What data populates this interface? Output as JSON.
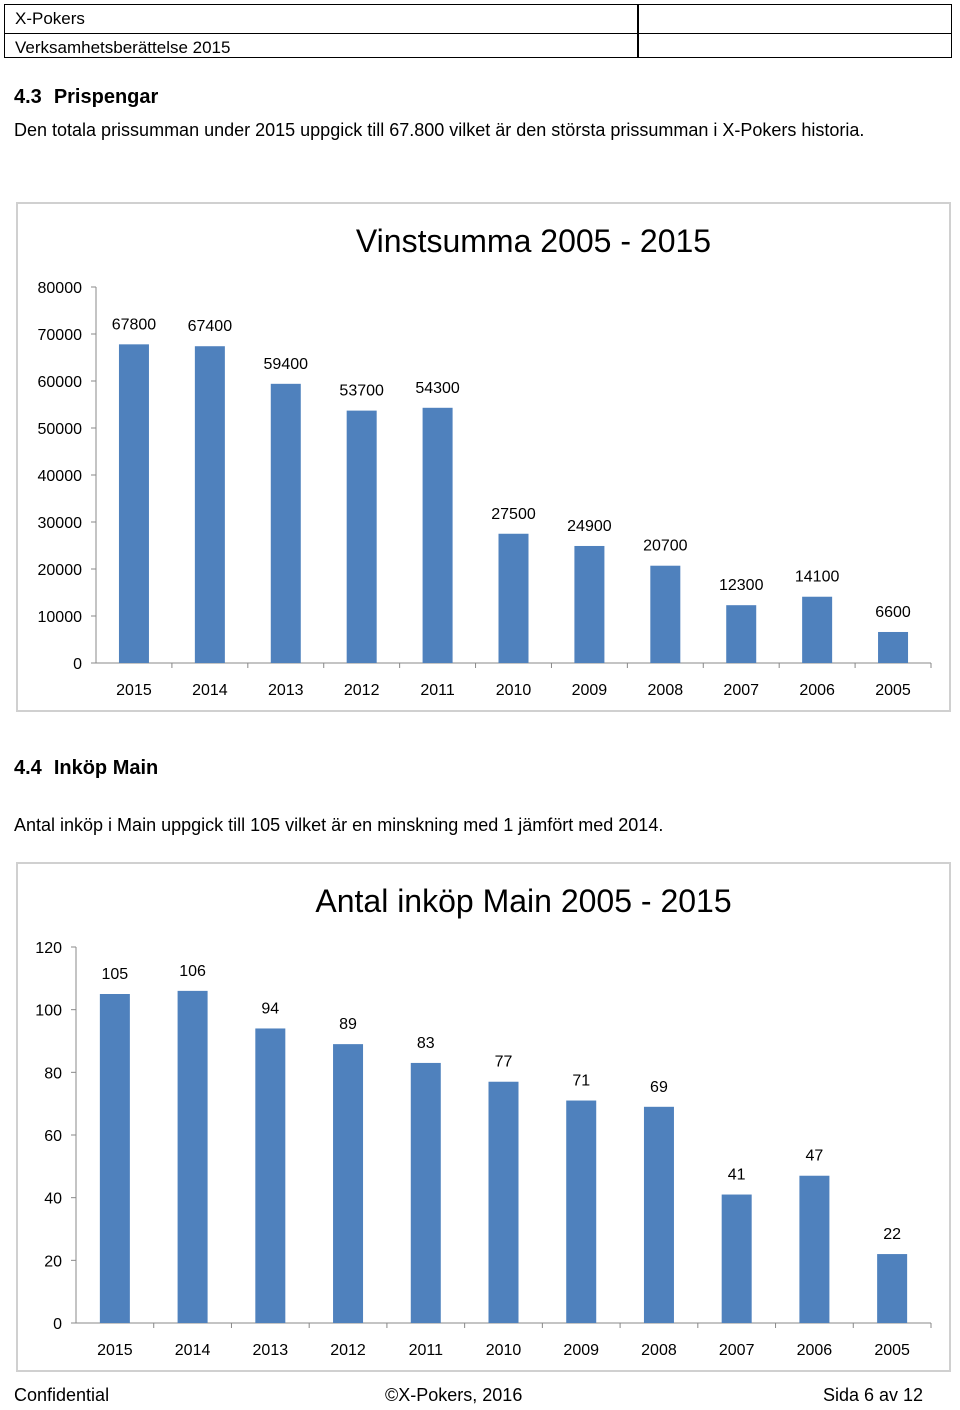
{
  "header": {
    "company": "X-Pokers",
    "report_title": "Verksamhetsberättelse 2015"
  },
  "section1": {
    "number": "4.3",
    "title": "Prispengar",
    "text": "Den totala prissumman under 2015 uppgick till 67.800 vilket är den största prissumman i X-Pokers historia."
  },
  "section2": {
    "number": "4.4",
    "title": "Inköp Main",
    "text": "Antal inköp i Main uppgick till 105 vilket är en minskning med 1 jämfört med 2014."
  },
  "chart_data": [
    {
      "type": "bar",
      "title": "Vinstsumma 2005 - 2015",
      "categories": [
        "2015",
        "2014",
        "2013",
        "2012",
        "2011",
        "2010",
        "2009",
        "2008",
        "2007",
        "2006",
        "2005"
      ],
      "values": [
        67800,
        67400,
        59400,
        53700,
        54300,
        27500,
        24900,
        20700,
        12300,
        14100,
        6600
      ],
      "ylim": [
        0,
        80000
      ],
      "yticks": [
        0,
        10000,
        20000,
        30000,
        40000,
        50000,
        60000,
        70000,
        80000
      ],
      "color": "#4f81bd",
      "grid": false,
      "data_labels": true
    },
    {
      "type": "bar",
      "title": "Antal inköp Main 2005 - 2015",
      "categories": [
        "2015",
        "2014",
        "2013",
        "2012",
        "2011",
        "2010",
        "2009",
        "2008",
        "2007",
        "2006",
        "2005"
      ],
      "values": [
        105,
        106,
        94,
        89,
        83,
        77,
        71,
        69,
        41,
        47,
        22
      ],
      "ylim": [
        0,
        120
      ],
      "yticks": [
        0,
        20,
        40,
        60,
        80,
        100,
        120
      ],
      "color": "#4f81bd",
      "grid": false,
      "data_labels": true
    }
  ],
  "footer": {
    "left": "Confidential",
    "center": "©X-Pokers, 2016",
    "right": "Sida 6 av 12"
  }
}
